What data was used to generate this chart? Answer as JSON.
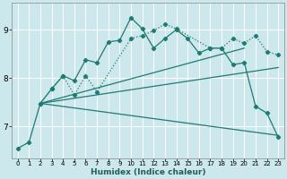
{
  "title": "",
  "xlabel": "Humidex (Indice chaleur)",
  "bg_color": "#cce8ec",
  "grid_color": "#ffffff",
  "line_color": "#1e7a72",
  "xlim": [
    -0.5,
    23.5
  ],
  "ylim": [
    6.35,
    9.55
  ],
  "yticks": [
    7,
    8,
    9
  ],
  "xticks": [
    0,
    1,
    2,
    3,
    4,
    5,
    6,
    7,
    8,
    9,
    10,
    11,
    12,
    13,
    14,
    15,
    16,
    17,
    18,
    19,
    20,
    21,
    22,
    23
  ],
  "series1_x": [
    0,
    1,
    2,
    3,
    4,
    5,
    6,
    7,
    8,
    9,
    10,
    11,
    12,
    13,
    14,
    15,
    16,
    17,
    18,
    19,
    20,
    21,
    22,
    23
  ],
  "series1_y": [
    6.55,
    6.68,
    7.48,
    7.78,
    8.05,
    7.95,
    8.38,
    8.32,
    8.75,
    8.78,
    9.25,
    9.02,
    8.62,
    8.82,
    9.0,
    8.82,
    8.52,
    8.62,
    8.62,
    8.28,
    8.32,
    7.42,
    7.28,
    6.78
  ],
  "series2_x": [
    2,
    3,
    4,
    5,
    6,
    7,
    10,
    11,
    12,
    13,
    14,
    17,
    18,
    19,
    20,
    21,
    22,
    23
  ],
  "series2_y": [
    7.48,
    7.78,
    8.05,
    7.65,
    8.05,
    7.72,
    8.82,
    8.88,
    8.98,
    9.12,
    9.02,
    8.62,
    8.62,
    8.82,
    8.72,
    8.88,
    8.55,
    8.48
  ],
  "line3_x": [
    2,
    23
  ],
  "line3_y": [
    7.48,
    6.82
  ],
  "line4_x": [
    2,
    23
  ],
  "line4_y": [
    7.48,
    8.22
  ],
  "line5_x": [
    2,
    20
  ],
  "line5_y": [
    7.48,
    8.62
  ]
}
